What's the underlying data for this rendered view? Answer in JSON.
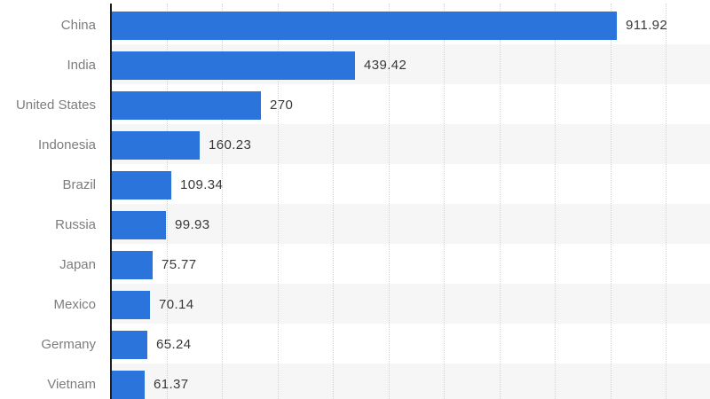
{
  "chart_data": {
    "type": "bar",
    "orientation": "horizontal",
    "title": "",
    "xlabel": "",
    "ylabel": "",
    "categories": [
      "China",
      "India",
      "United States",
      "Indonesia",
      "Brazil",
      "Russia",
      "Japan",
      "Mexico",
      "Germany",
      "Vietnam"
    ],
    "values": [
      911.92,
      439.42,
      270,
      160.23,
      109.34,
      99.93,
      75.77,
      70.14,
      65.24,
      61.37
    ],
    "value_labels": [
      "911.92",
      "439.42",
      "270",
      "160.23",
      "109.34",
      "99.93",
      "75.77",
      "70.14",
      "65.24",
      "61.37"
    ],
    "xlim": [
      0,
      1080
    ],
    "gridline_interval": 100,
    "gridline_max": 1000,
    "grid": "vertical-dotted",
    "legend": "none",
    "row_banding": "alternate-rows-shaded-in-plot-area-only",
    "colors": {
      "bar": "#2b74dc",
      "row_band": "#f6f6f6",
      "gridline": "#d4d4d4",
      "axis_line": "#1f1f1f",
      "category_label": "#7d7d7d",
      "value_label": "#383838",
      "background": "#ffffff"
    }
  }
}
